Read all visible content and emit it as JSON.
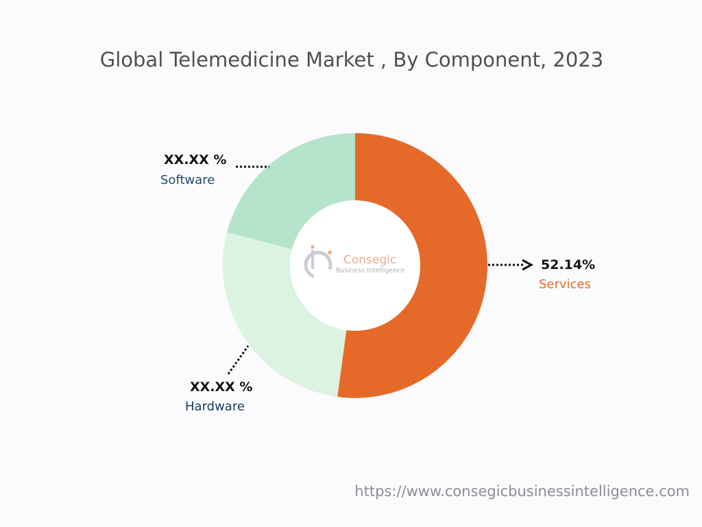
{
  "chart_data": {
    "type": "pie",
    "variant": "donut",
    "title": "Global Telemedicine Market , By Component, 2023",
    "slices": [
      {
        "label": "Services",
        "value": 52.14,
        "display": "52.14%",
        "color": "#e56a29",
        "label_color": "#e56a29"
      },
      {
        "label": "Hardware",
        "value": 26.9,
        "display": "XX.XX %",
        "color": "#dcf3e2",
        "label_color": "#173d5e"
      },
      {
        "label": "Software",
        "value": 20.96,
        "display": "XX.XX %",
        "color": "#b6e3cb",
        "label_color": "#1f4e6a"
      }
    ],
    "legend": "none"
  },
  "logo": {
    "mark": "ib",
    "name": "Consegic",
    "tagline": "Business Intelligence"
  },
  "footer": {
    "url": "https://www.consegicbusinessintelligence.com"
  }
}
